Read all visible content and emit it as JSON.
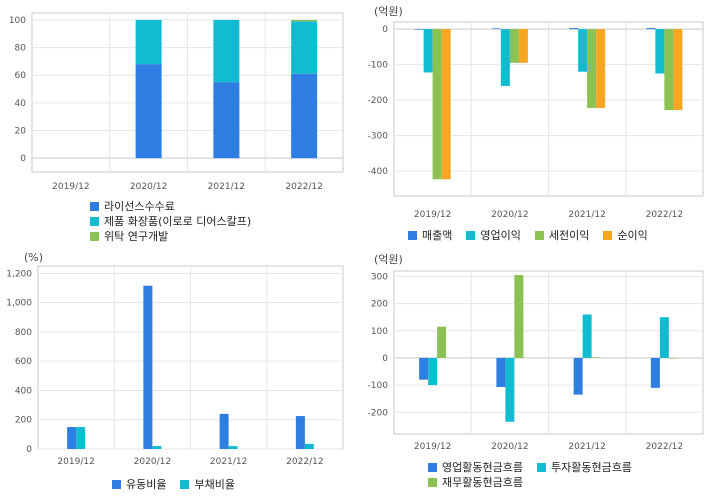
{
  "colors": {
    "blue": "#2e7de0",
    "cyan": "#12bcd0",
    "green": "#8cc153",
    "orange": "#f6a623",
    "grid": "#e6e6e6",
    "axis": "#999999"
  },
  "chart_data": [
    {
      "type": "bar",
      "stacked": true,
      "unit": "",
      "categories": [
        "2019/12",
        "2020/12",
        "2021/12",
        "2022/12"
      ],
      "ylim": [
        -10,
        105
      ],
      "yticks": [
        0,
        20,
        40,
        60,
        80,
        100
      ],
      "series": [
        {
          "name": "라이선스수수료",
          "color": "#2e7de0",
          "values": [
            0,
            68,
            55,
            61
          ]
        },
        {
          "name": "제품 화장품(이로로 디어스칼프)",
          "color": "#12bcd0",
          "values": [
            0,
            32,
            45,
            38
          ]
        },
        {
          "name": "위탁 연구개발",
          "color": "#8cc153",
          "values": [
            0,
            0,
            0,
            1
          ]
        }
      ],
      "legend": "bottom"
    },
    {
      "type": "bar",
      "unit": "(억원)",
      "categories": [
        "2019/12",
        "2020/12",
        "2021/12",
        "2022/12"
      ],
      "ylim": [
        -470,
        20
      ],
      "yticks": [
        0,
        -100,
        -200,
        -300,
        -400
      ],
      "series": [
        {
          "name": "매출액",
          "color": "#2e7de0",
          "values": [
            0,
            2,
            3,
            3
          ]
        },
        {
          "name": "영업이익",
          "color": "#12bcd0",
          "values": [
            -122,
            -160,
            -120,
            -125
          ]
        },
        {
          "name": "세전이익",
          "color": "#8cc153",
          "values": [
            -423,
            -95,
            -222,
            -228
          ]
        },
        {
          "name": "순이익",
          "color": "#f6a623",
          "values": [
            -423,
            -95,
            -222,
            -228
          ]
        }
      ],
      "legend": "bottom"
    },
    {
      "type": "bar",
      "unit": "(%)",
      "categories": [
        "2019/12",
        "2020/12",
        "2021/12",
        "2022/12"
      ],
      "ylim": [
        0,
        1250
      ],
      "yticks": [
        0,
        200,
        400,
        600,
        800,
        1000,
        1200
      ],
      "yticklabels": [
        "0",
        "200",
        "400",
        "600",
        "800",
        "1,000",
        "1,200"
      ],
      "series": [
        {
          "name": "유동비율",
          "color": "#2e7de0",
          "values": [
            150,
            1115,
            240,
            225
          ]
        },
        {
          "name": "부채비율",
          "color": "#12bcd0",
          "values": [
            150,
            20,
            20,
            35
          ]
        }
      ],
      "legend": "bottom"
    },
    {
      "type": "bar",
      "unit": "(억원)",
      "categories": [
        "2019/12",
        "2020/12",
        "2021/12",
        "2022/12"
      ],
      "ylim": [
        -280,
        320
      ],
      "yticks": [
        300,
        200,
        100,
        0,
        -100,
        -200
      ],
      "series": [
        {
          "name": "영업활동현금흐름",
          "color": "#2e7de0",
          "values": [
            -80,
            -107,
            -135,
            -110
          ]
        },
        {
          "name": "투자활동현금흐름",
          "color": "#12bcd0",
          "values": [
            -100,
            -235,
            160,
            150
          ]
        },
        {
          "name": "재무활동현금흐름",
          "color": "#8cc153",
          "values": [
            115,
            305,
            2,
            0
          ]
        }
      ],
      "legend": "bottom"
    }
  ]
}
